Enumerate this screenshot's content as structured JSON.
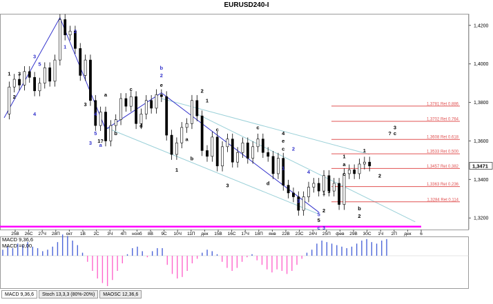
{
  "title": "EURUSD240-I",
  "indicator_legend": {
    "line1": "MACD 9,36,6",
    "line2": "MACD =0,00"
  },
  "tabs": [
    {
      "label": "MACD 9,36,6",
      "active": true
    },
    {
      "label": "Stoch 13,3,3 (80%-20%)",
      "active": false
    },
    {
      "label": "MAOSC 12,36,6",
      "active": false
    }
  ],
  "colors": {
    "candles": "#000000",
    "wave_line": "#3333cc",
    "channel": "#9ad0d8",
    "levels": "#e05050",
    "support": "#ff00ff",
    "macd_pos": "#4a64d8",
    "macd_neg": "#ff66cc",
    "current_price_box": "#ffffff"
  },
  "chart_data": {
    "type": "line",
    "title": "EURUSD240-I",
    "ylim": [
      1.314,
      1.426
    ],
    "y_ticks": [
      "1,4200",
      "1,4000",
      "1,3800",
      "1,3600",
      "1,3400",
      "1,3200"
    ],
    "x_ticks": [
      "25В",
      "26С",
      "27Ч",
      "28П",
      "окт",
      "1В",
      "2С",
      "3Ч",
      "4П",
      "нояб",
      "8В",
      "9С",
      "10Ч",
      "11П",
      "дек",
      "15В",
      "16С",
      "17Ч",
      "18П",
      "янв",
      "22В",
      "23С",
      "24Ч",
      "25П",
      "фев",
      "29В",
      "30С",
      "1Ч",
      "2П",
      "дек",
      "6"
    ],
    "current_price": "1,3471",
    "fib_levels": [
      {
        "price": 1.3781,
        "label": "1,3781 Ret 0.886"
      },
      {
        "price": 1.3702,
        "label": "1,3702 Ret 0.764"
      },
      {
        "price": 1.3608,
        "label": "1,3608 Ret 0.618"
      },
      {
        "price": 1.3533,
        "label": "1,3533 Ret 0.500"
      },
      {
        "price": 1.3457,
        "label": "1,3457 Ret 0.382"
      },
      {
        "price": 1.3363,
        "label": "1,3363 Ret 0.236"
      },
      {
        "price": 1.3284,
        "label": "1,3284 Ret 0.114"
      }
    ],
    "support_line": 1.3155,
    "price_path": [
      1.374,
      1.388,
      1.392,
      1.389,
      1.396,
      1.393,
      1.386,
      1.39,
      1.398,
      1.391,
      1.402,
      1.423,
      1.415,
      1.417,
      1.408,
      1.394,
      1.402,
      1.381,
      1.368,
      1.375,
      1.36,
      1.368,
      1.371,
      1.382,
      1.378,
      1.383,
      1.369,
      1.374,
      1.381,
      1.377,
      1.384,
      1.383,
      1.363,
      1.353,
      1.359,
      1.367,
      1.369,
      1.381,
      1.373,
      1.355,
      1.352,
      1.362,
      1.347,
      1.357,
      1.361,
      1.349,
      1.354,
      1.359,
      1.351,
      1.357,
      1.361,
      1.354,
      1.352,
      1.343,
      1.351,
      1.337,
      1.333,
      1.331,
      1.324,
      1.331,
      1.336,
      1.338,
      1.334,
      1.342,
      1.334,
      1.338,
      1.327,
      1.343,
      1.345,
      1.343,
      1.348,
      1.349,
      1.347
    ],
    "wave_lines": [
      [
        [
          1.372,
          0
        ],
        [
          1.424,
          11
        ],
        [
          1.366,
          20
        ],
        [
          1.385,
          31
        ],
        [
          1.323,
          62
        ]
      ]
    ],
    "channels": [
      [
        [
          1.382,
          31
        ],
        [
          1.353,
          72
        ]
      ],
      [
        [
          1.374,
          38
        ],
        [
          1.318,
          81
        ]
      ],
      [
        [
          1.367,
          20
        ],
        [
          1.322,
          62
        ]
      ]
    ],
    "wave_labels": [
      {
        "text": "1",
        "price": 1.394,
        "bar": 1,
        "color": "black"
      },
      {
        "text": "2",
        "price": 1.382,
        "bar": 2,
        "color": "black"
      },
      {
        "text": "3",
        "price": 1.394,
        "bar": 3,
        "color": "black"
      },
      {
        "text": "3",
        "price": 1.403,
        "bar": 6,
        "color": "blue"
      },
      {
        "text": "5",
        "price": 1.399,
        "bar": 7,
        "color": "blue"
      },
      {
        "text": "4",
        "price": 1.373,
        "bar": 6,
        "color": "blue"
      },
      {
        "text": "2",
        "price": 1.416,
        "bar": 14,
        "color": "blue"
      },
      {
        "text": "3",
        "price": 1.416,
        "bar": 12,
        "color": "black"
      },
      {
        "text": "1",
        "price": 1.408,
        "bar": 12,
        "color": "blue"
      },
      {
        "text": "4",
        "price": 1.373,
        "bar": 18,
        "color": "blue"
      },
      {
        "text": "3",
        "price": 1.378,
        "bar": 16,
        "color": "black"
      },
      {
        "text": "5",
        "price": 1.363,
        "bar": 18,
        "color": "blue"
      },
      {
        "text": "1?",
        "price": 1.359,
        "bar": 19,
        "color": "black"
      },
      {
        "text": "a",
        "price": 1.357,
        "bar": 19,
        "color": "blue"
      },
      {
        "text": "3",
        "price": 1.358,
        "bar": 17,
        "color": "blue"
      },
      {
        "text": "a",
        "price": 1.383,
        "bar": 20,
        "color": "black"
      },
      {
        "text": "c",
        "price": 1.386,
        "bar": 25,
        "color": "black"
      },
      {
        "text": "b",
        "price": 1.363,
        "bar": 22,
        "color": "black"
      },
      {
        "text": "d",
        "price": 1.367,
        "bar": 27,
        "color": "black"
      },
      {
        "text": "b",
        "price": 1.397,
        "bar": 31,
        "color": "blue"
      },
      {
        "text": "2",
        "price": 1.393,
        "bar": 31,
        "color": "blue"
      },
      {
        "text": "e",
        "price": 1.388,
        "bar": 31,
        "color": "black"
      },
      {
        "text": "1",
        "price": 1.344,
        "bar": 34,
        "color": "black"
      },
      {
        "text": "b",
        "price": 1.35,
        "bar": 37,
        "color": "black"
      },
      {
        "text": "a",
        "price": 1.36,
        "bar": 36,
        "color": "black"
      },
      {
        "text": "2",
        "price": 1.385,
        "bar": 39,
        "color": "black"
      },
      {
        "text": "1",
        "price": 1.38,
        "bar": 40,
        "color": "black"
      },
      {
        "text": "c",
        "price": 1.365,
        "bar": 42,
        "color": "black"
      },
      {
        "text": "3",
        "price": 1.336,
        "bar": 44,
        "color": "black"
      },
      {
        "text": "c",
        "price": 1.366,
        "bar": 50,
        "color": "black"
      },
      {
        "text": "d",
        "price": 1.337,
        "bar": 52,
        "color": "black"
      },
      {
        "text": "4",
        "price": 1.363,
        "bar": 55,
        "color": "black"
      },
      {
        "text": "e",
        "price": 1.359,
        "bar": 55,
        "color": "black"
      },
      {
        "text": "c",
        "price": 1.355,
        "bar": 55,
        "color": "black"
      },
      {
        "text": "1",
        "price": 1.345,
        "bar": 55,
        "color": "blue"
      },
      {
        "text": "2",
        "price": 1.355,
        "bar": 57,
        "color": "blue"
      },
      {
        "text": "3",
        "price": 1.328,
        "bar": 58,
        "color": "blue"
      },
      {
        "text": "4",
        "price": 1.343,
        "bar": 60,
        "color": "blue"
      },
      {
        "text": "5",
        "price": 1.321,
        "bar": 62,
        "color": "blue"
      },
      {
        "text": "5",
        "price": 1.318,
        "bar": 62,
        "color": "black"
      },
      {
        "text": "c",
        "price": 1.314,
        "bar": 62,
        "color": "blue"
      },
      {
        "text": "3",
        "price": 1.314,
        "bar": 63,
        "color": "blue"
      },
      {
        "text": "1",
        "price": 1.332,
        "bar": 63,
        "color": "black"
      },
      {
        "text": "2",
        "price": 1.323,
        "bar": 63,
        "color": "black"
      },
      {
        "text": "3",
        "price": 1.333,
        "bar": 64,
        "color": "black"
      },
      {
        "text": "4",
        "price": 1.328,
        "bar": 66,
        "color": "black"
      },
      {
        "text": "1",
        "price": 1.351,
        "bar": 67,
        "color": "black"
      },
      {
        "text": "a",
        "price": 1.347,
        "bar": 67,
        "color": "black"
      },
      {
        "text": "c",
        "price": 1.342,
        "bar": 67,
        "color": "black"
      },
      {
        "text": "b",
        "price": 1.324,
        "bar": 70,
        "color": "black"
      },
      {
        "text": "2",
        "price": 1.32,
        "bar": 70,
        "color": "black"
      },
      {
        "text": "1",
        "price": 1.354,
        "bar": 71,
        "color": "black"
      },
      {
        "text": "2",
        "price": 1.341,
        "bar": 74,
        "color": "black"
      },
      {
        "text": "?",
        "price": 1.363,
        "bar": 76,
        "color": "black"
      },
      {
        "text": "3",
        "price": 1.366,
        "bar": 77,
        "color": "black"
      },
      {
        "text": "c",
        "price": 1.363,
        "bar": 77,
        "color": "black"
      }
    ],
    "macd_histogram": [
      0.4,
      0.6,
      0.5,
      0.8,
      0.7,
      0.9,
      0.6,
      0.5,
      0.3,
      0.4,
      0.6,
      0.9,
      1.4,
      1.3,
      1.0,
      0.7,
      0.2,
      -0.4,
      -1.0,
      -1.5,
      -1.8,
      -2.0,
      -1.6,
      -1.0,
      -0.5,
      0.1,
      0.5,
      0.6,
      0.3,
      -0.1,
      0.3,
      0.5,
      0.5,
      -0.6,
      -1.2,
      -1.5,
      -1.4,
      -1.0,
      -0.5,
      -0.2,
      0.2,
      0.4,
      0.3,
      0.1,
      -0.4,
      -0.8,
      -1.0,
      -0.8,
      -0.4,
      -0.1,
      0.1,
      -0.3,
      -0.6,
      -0.9,
      -1.1,
      -0.9,
      -1.0,
      -1.2,
      -1.0,
      -0.6,
      -0.2,
      0.2,
      0.4,
      0.8,
      1.0,
      0.9,
      0.8,
      0.7,
      0.6,
      0.5,
      0.6,
      0.8,
      1.0,
      1.1,
      0.9,
      0.8,
      1.0,
      1.1
    ]
  }
}
